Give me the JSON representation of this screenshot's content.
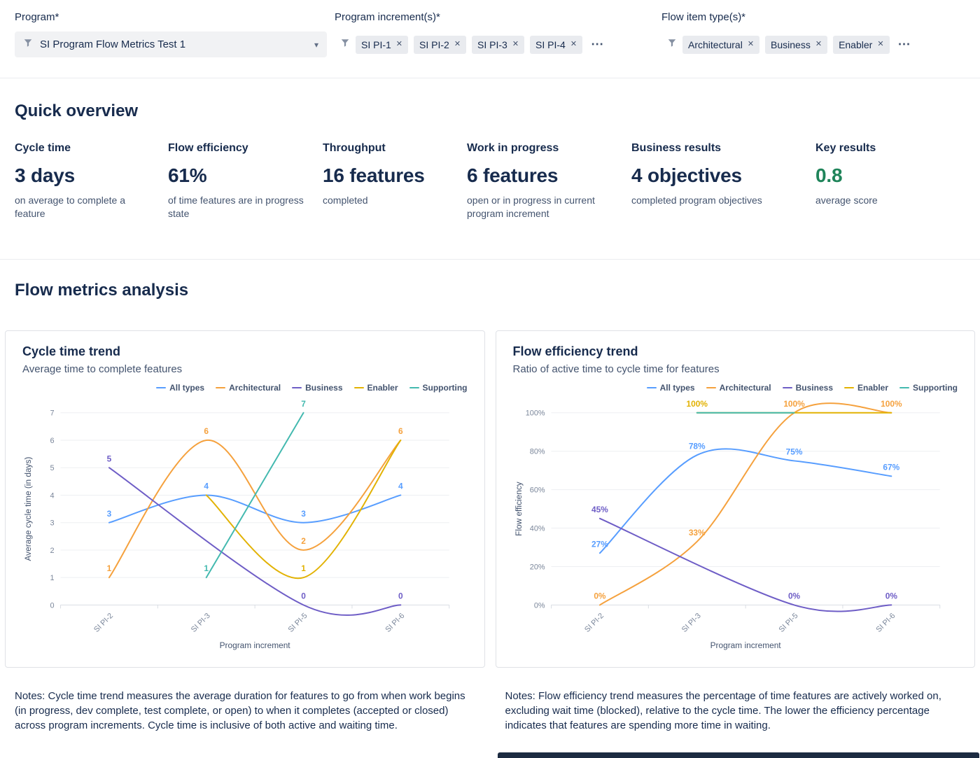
{
  "icons": {
    "close": "✕",
    "chevron_down": "▾",
    "more": "⋯"
  },
  "filters": {
    "program": {
      "label": "Program*",
      "value": "SI Program Flow Metrics Test 1"
    },
    "program_increments": {
      "label": "Program increment(s)*",
      "chips": [
        "SI PI-1",
        "SI PI-2",
        "SI PI-3",
        "SI PI-4"
      ]
    },
    "flow_item_types": {
      "label": "Flow item type(s)*",
      "chips": [
        "Architectural",
        "Business",
        "Enabler"
      ]
    }
  },
  "quick_overview": {
    "title": "Quick overview",
    "metrics": [
      {
        "label": "Cycle time",
        "value": "3 days",
        "description": "on average to complete a feature"
      },
      {
        "label": "Flow efficiency",
        "value": "61%",
        "description": "of time features are in progress state"
      },
      {
        "label": "Throughput",
        "value": "16 features",
        "description": "completed"
      },
      {
        "label": "Work in progress",
        "value": "6 features",
        "description": "open or in progress in current program increment"
      },
      {
        "label": "Business results",
        "value": "4 objectives",
        "description": "completed program objectives"
      },
      {
        "label": "Key results",
        "value": "0.8",
        "description": "average score",
        "value_color": "#1F845A"
      }
    ]
  },
  "flow_metrics_analysis": {
    "title": "Flow metrics analysis",
    "notes": [
      "Notes: Cycle time trend measures the average duration for features to go from when work begins (in progress, dev complete, test complete, or open) to when it completes (accepted or closed) across program increments. Cycle time is inclusive of both active and waiting time.",
      "Notes: Flow efficiency trend measures the percentage of time features are actively worked on, excluding wait time (blocked), relative to the cycle time. The lower the efficiency percentage indicates that features are spending more time in waiting."
    ]
  },
  "chart_data": [
    {
      "type": "line",
      "title": "Cycle time trend",
      "subtitle": "Average time to complete features",
      "xlabel": "Program increment",
      "ylabel": "Average cycle time (in days)",
      "categories": [
        "SI PI-2",
        "SI PI-3",
        "SI PI-5",
        "SI PI-6"
      ],
      "ylim": [
        0,
        7
      ],
      "y_step": 1,
      "y_suffix": "",
      "label_suffix": "",
      "grid": true,
      "smooth": true,
      "legend_position": "top-right",
      "series": [
        {
          "name": "All types",
          "color": "#579DFF",
          "values": [
            3,
            4,
            3,
            4
          ]
        },
        {
          "name": "Architectural",
          "color": "#F5A13D",
          "values": [
            1,
            6,
            2,
            6
          ]
        },
        {
          "name": "Business",
          "color": "#6E5DC6",
          "values": [
            5,
            null,
            0,
            0
          ]
        },
        {
          "name": "Enabler",
          "color": "#E2B203",
          "values": [
            null,
            4,
            1,
            6
          ]
        },
        {
          "name": "Supporting",
          "color": "#43B9AF",
          "values": [
            null,
            1,
            7,
            null
          ]
        }
      ]
    },
    {
      "type": "line",
      "title": "Flow efficiency trend",
      "subtitle": "Ratio of active time to cycle time for features",
      "xlabel": "Program increment",
      "ylabel": "Flow efficiency",
      "categories": [
        "SI PI-2",
        "SI PI-3",
        "SI PI-5",
        "SI PI-6"
      ],
      "ylim": [
        0,
        100
      ],
      "y_step": 20,
      "y_suffix": "%",
      "label_suffix": "%",
      "grid": true,
      "smooth": true,
      "legend_position": "top-right",
      "series": [
        {
          "name": "All types",
          "color": "#579DFF",
          "values": [
            27,
            78,
            75,
            67
          ]
        },
        {
          "name": "Architectural",
          "color": "#F5A13D",
          "values": [
            0,
            33,
            100,
            100
          ]
        },
        {
          "name": "Business",
          "color": "#6E5DC6",
          "values": [
            45,
            null,
            0,
            0
          ]
        },
        {
          "name": "Enabler",
          "color": "#E2B203",
          "values": [
            null,
            100,
            100,
            100
          ]
        },
        {
          "name": "Supporting",
          "color": "#43B9AF",
          "values": [
            null,
            100,
            100,
            null
          ]
        }
      ]
    }
  ]
}
